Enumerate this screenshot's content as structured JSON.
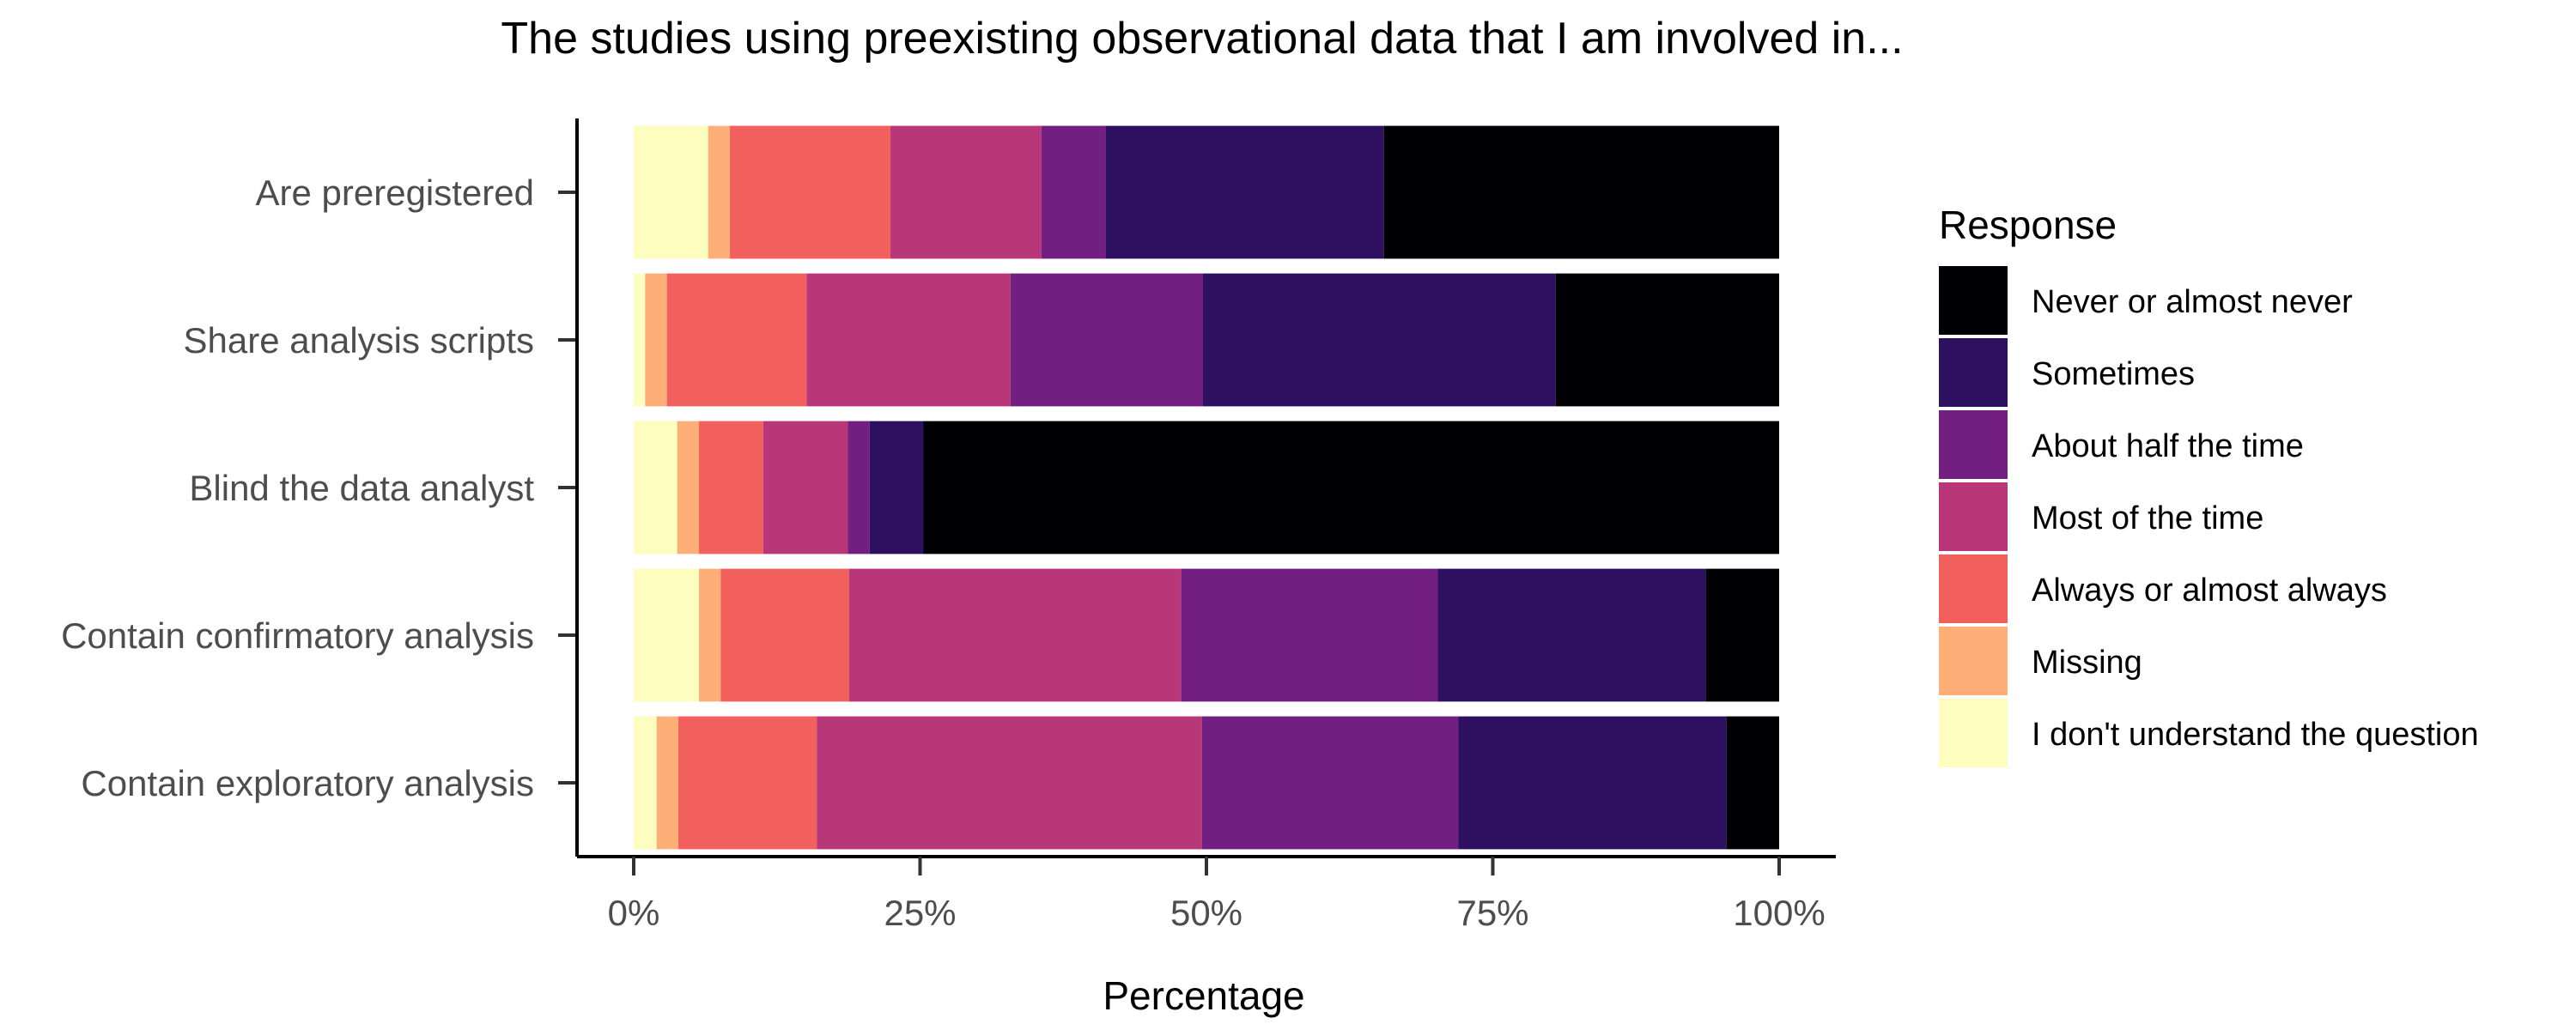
{
  "chart_data": {
    "type": "bar",
    "orientation": "horizontal",
    "stacked": true,
    "title": "The studies using preexisting observational data that I am involved in...",
    "xlabel": "Percentage",
    "ylabel": "",
    "xlim": [
      0,
      100
    ],
    "x_ticks": [
      0,
      25,
      50,
      75,
      100
    ],
    "x_tick_labels": [
      "0%",
      "25%",
      "50%",
      "75%",
      "100%"
    ],
    "grid": false,
    "legend_title": "Response",
    "legend_position": "right",
    "categories": [
      "Are preregistered",
      "Share analysis scripts",
      "Blind the data analyst",
      "Contain confirmatory analysis",
      "Contain exploratory analysis"
    ],
    "series": [
      {
        "name": "I don't understand the question",
        "color": "#FCFDBF",
        "values": [
          6.5,
          1.0,
          3.8,
          5.7,
          2.0
        ]
      },
      {
        "name": "Missing",
        "color": "#FEAF77",
        "values": [
          1.9,
          1.9,
          1.9,
          1.9,
          1.9
        ]
      },
      {
        "name": "Always or almost always",
        "color": "#F1605D",
        "values": [
          14.0,
          12.2,
          5.6,
          11.2,
          12.1
        ]
      },
      {
        "name": "Most of the time",
        "color": "#B73779",
        "values": [
          13.2,
          17.8,
          7.4,
          29.0,
          33.6
        ]
      },
      {
        "name": "About half the time",
        "color": "#721F81",
        "values": [
          5.6,
          16.8,
          1.9,
          22.4,
          22.4
        ]
      },
      {
        "name": "Sometimes",
        "color": "#2D1160",
        "values": [
          24.3,
          30.8,
          4.7,
          23.4,
          23.4
        ]
      },
      {
        "name": "Never or almost never",
        "color": "#000004",
        "values": [
          34.5,
          19.5,
          74.7,
          6.4,
          4.6
        ]
      }
    ],
    "legend_order": [
      "Never or almost never",
      "Sometimes",
      "About half the time",
      "Most of the time",
      "Always or almost always",
      "Missing",
      "I don't understand the question"
    ]
  }
}
